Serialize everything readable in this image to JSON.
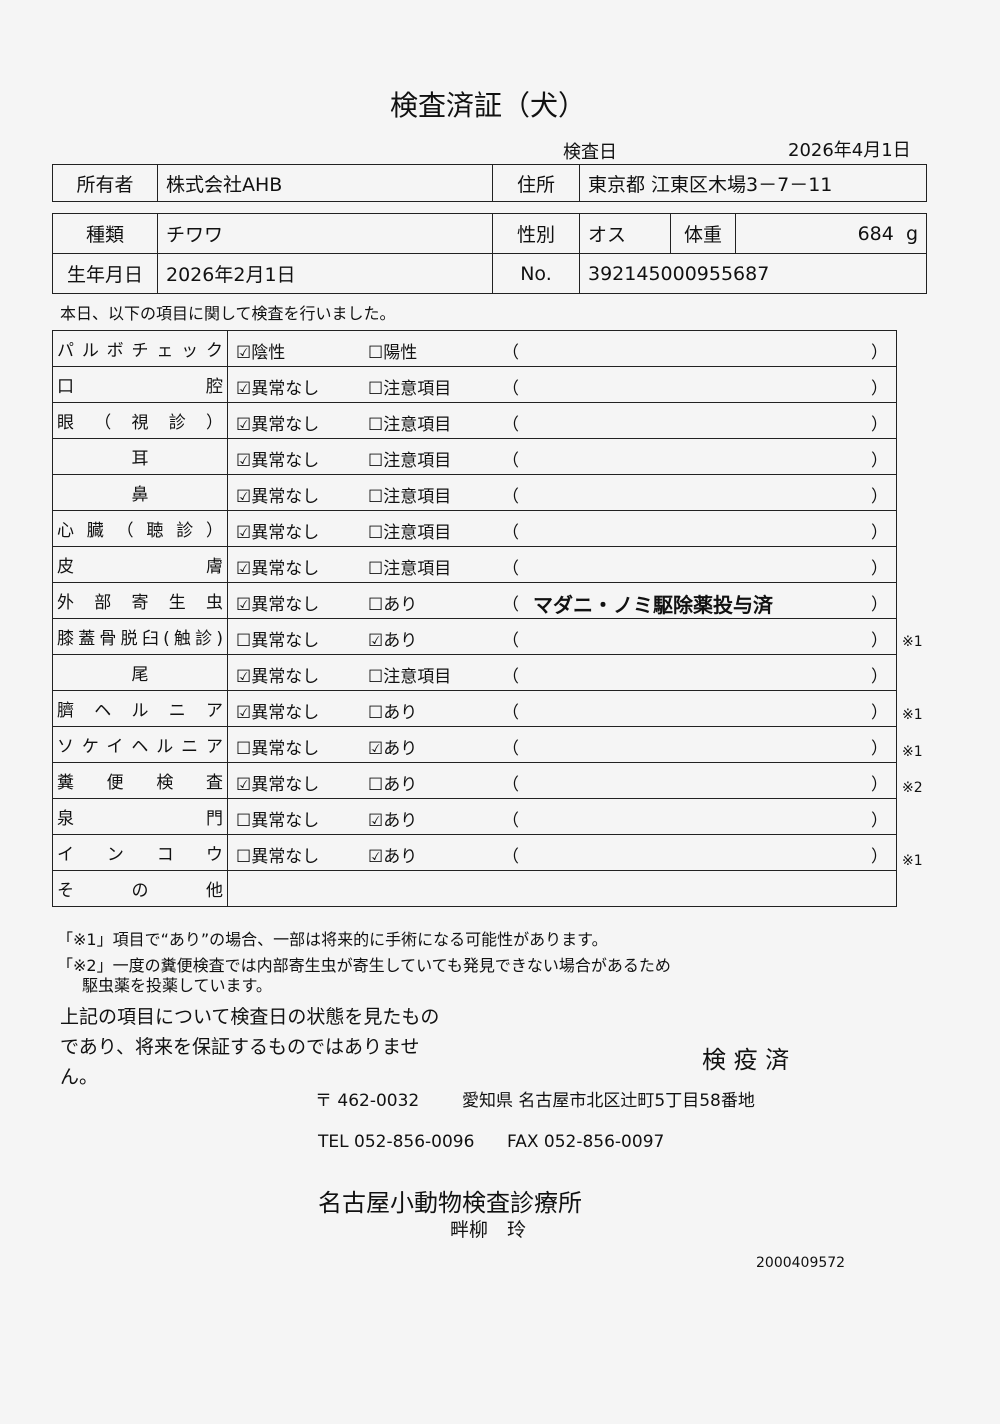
{
  "title": "検査済証（犬）",
  "inspection_date": {
    "label": "検査日",
    "value": "2026年4月1日"
  },
  "owner": {
    "label": "所有者",
    "value": "株式会社AHB",
    "address_label": "住所",
    "address": "東京都 江東区木場3－7－11"
  },
  "pet": {
    "type_label": "種類",
    "type": "チワワ",
    "sex_label": "性別",
    "sex": "オス",
    "weight_label": "体重",
    "weight": "684",
    "weight_unit": "g",
    "birth_label": "生年月日",
    "birth": "2026年2月1日",
    "no_label": "No.",
    "no": "392145000955687"
  },
  "intro": "本日、以下の項目に関して検査を行いました。",
  "checkbox": {
    "checked": "☑",
    "unchecked": "☐"
  },
  "paren_open": "（",
  "paren_close": "）",
  "rows": [
    {
      "label": "パルボチェック",
      "opt1": "陰性",
      "opt2": "陽性",
      "checked": 1,
      "note": "",
      "mark": ""
    },
    {
      "label": "口腔",
      "opt1": "異常なし",
      "opt2": "注意項目",
      "checked": 1,
      "note": "",
      "mark": ""
    },
    {
      "label": "眼（視診）",
      "opt1": "異常なし",
      "opt2": "注意項目",
      "checked": 1,
      "note": "",
      "mark": ""
    },
    {
      "label": "耳",
      "opt1": "異常なし",
      "opt2": "注意項目",
      "checked": 1,
      "note": "",
      "mark": ""
    },
    {
      "label": "鼻",
      "opt1": "異常なし",
      "opt2": "注意項目",
      "checked": 1,
      "note": "",
      "mark": ""
    },
    {
      "label": "心臓（聴診）",
      "opt1": "異常なし",
      "opt2": "注意項目",
      "checked": 1,
      "note": "",
      "mark": ""
    },
    {
      "label": "皮膚",
      "opt1": "異常なし",
      "opt2": "注意項目",
      "checked": 1,
      "note": "",
      "mark": ""
    },
    {
      "label": "外部寄生虫",
      "opt1": "異常なし",
      "opt2": "あり",
      "checked": 1,
      "note": "マダニ・ノミ駆除薬投与済",
      "mark": ""
    },
    {
      "label": "膝蓋骨脱臼(触診)",
      "opt1": "異常なし",
      "opt2": "あり",
      "checked": 2,
      "note": "",
      "mark": "※1"
    },
    {
      "label": "尾",
      "opt1": "異常なし",
      "opt2": "注意項目",
      "checked": 1,
      "note": "",
      "mark": ""
    },
    {
      "label": "臍ヘルニア",
      "opt1": "異常なし",
      "opt2": "あり",
      "checked": 1,
      "note": "",
      "mark": "※1"
    },
    {
      "label": "ソケイヘルニア",
      "opt1": "異常なし",
      "opt2": "あり",
      "checked": 2,
      "note": "",
      "mark": "※1"
    },
    {
      "label": "糞便検査",
      "opt1": "異常なし",
      "opt2": "あり",
      "checked": 1,
      "note": "",
      "mark": "※2"
    },
    {
      "label": "泉門",
      "opt1": "異常なし",
      "opt2": "あり",
      "checked": 2,
      "note": "",
      "mark": ""
    },
    {
      "label": "インコウ",
      "opt1": "異常なし",
      "opt2": "あり",
      "checked": 2,
      "note": "",
      "mark": "※1"
    }
  ],
  "other_label": "その他",
  "footnote1": "「※1」項目で“あり”の場合、一部は将来的に手術になる可能性があります。",
  "footnote2a": "「※2」一度の糞便検査では内部寄生虫が寄生していても発見できない場合があるため",
  "footnote2b": "駆虫薬を投薬しています。",
  "disclaimer": "上記の項目について検査日の状態を見たものであり、将来を保証するものではありません。",
  "stamp": "検 疫 済",
  "clinic": {
    "postal": "〒 462-0032",
    "address": "愛知県 名古屋市北区辻町5丁目58番地",
    "tel": "TEL 052-856-0096",
    "fax": "FAX 052-856-0097",
    "name": "名古屋小動物検査診療所",
    "doctor": "畔柳　玲"
  },
  "doc_number": "2000409572"
}
